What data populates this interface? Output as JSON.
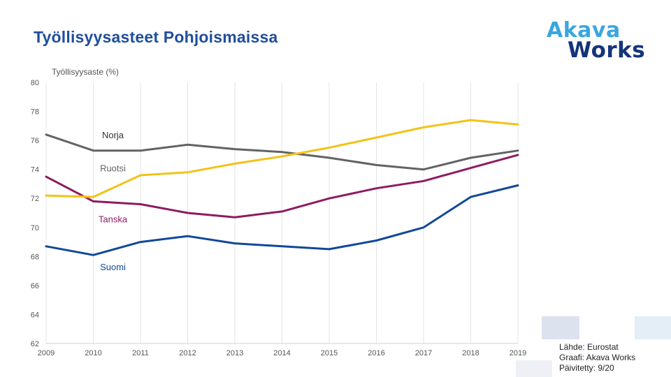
{
  "title": "Työllisyysasteet Pohjoismaissa",
  "logo": {
    "line1": "Akava",
    "line2": "Works"
  },
  "source": {
    "line1": "Lähde: Eurostat",
    "line2": "Graafi: Akava Works",
    "line3": "Päivitetty: 9/20"
  },
  "chart_data": {
    "type": "line",
    "title": "Työllisyysasteet Pohjoismaissa",
    "ylabel": "Työllisyysaste (%)",
    "xlabel": "",
    "ylim": [
      62,
      80
    ],
    "yticks": [
      "62",
      "64",
      "66",
      "68",
      "70",
      "72",
      "74",
      "76",
      "78",
      "80"
    ],
    "categories": [
      "2009",
      "2010",
      "2011",
      "2012",
      "2013",
      "2014",
      "2015",
      "2016",
      "2017",
      "2018",
      "2019"
    ],
    "grid": "vertical",
    "series": [
      {
        "name": "Norja",
        "color": "#f2c318",
        "values": [
          72.2,
          72.1,
          73.6,
          73.8,
          74.4,
          74.9,
          75.5,
          76.2,
          76.9,
          77.4,
          77.1
        ]
      },
      {
        "name": "Ruotsi",
        "color": "#636363",
        "values": [
          76.4,
          75.3,
          75.3,
          75.7,
          75.4,
          75.2,
          74.8,
          74.3,
          74.0,
          74.8,
          75.3
        ]
      },
      {
        "name": "Tanska",
        "color": "#8e1b62",
        "values": [
          73.5,
          71.8,
          71.6,
          71.0,
          70.7,
          71.1,
          72.0,
          72.7,
          73.2,
          74.1,
          75.0
        ]
      },
      {
        "name": "Suomi",
        "color": "#114899",
        "values": [
          68.7,
          68.1,
          69.0,
          69.4,
          68.9,
          68.7,
          68.5,
          69.1,
          70.0,
          72.1,
          72.9
        ]
      }
    ]
  }
}
